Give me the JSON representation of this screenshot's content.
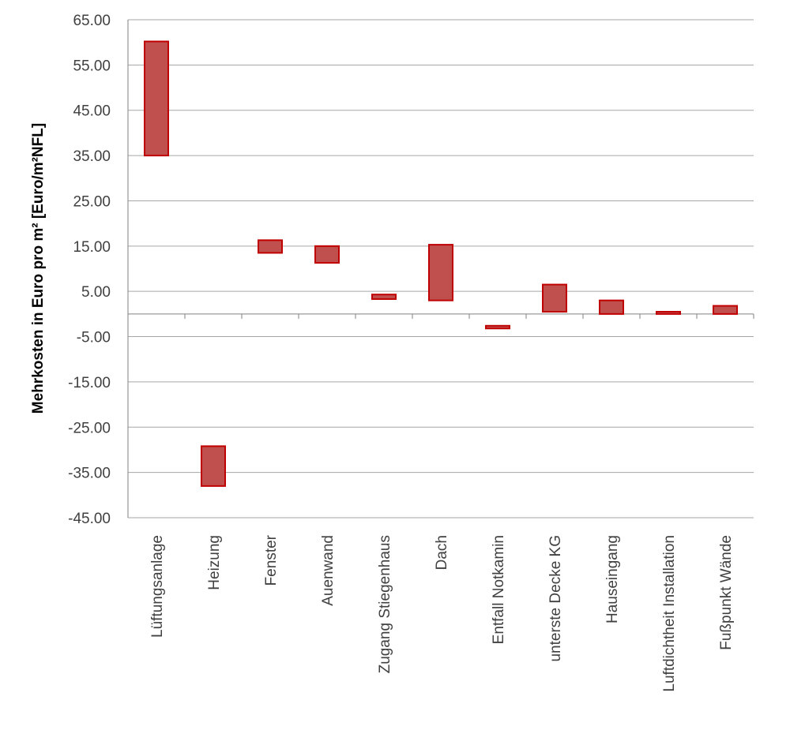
{
  "chart_data": {
    "type": "bar",
    "subtype": "floating-range",
    "title": "",
    "xlabel": "",
    "ylabel": "Mehrkosten in Euro pro m² [Euro/m²NFL]",
    "ylim": [
      -45,
      65
    ],
    "yticks": [
      "65.00",
      "55.00",
      "45.00",
      "35.00",
      "25.00",
      "15.00",
      "5.00",
      "-5.00",
      "-15.00",
      "-25.00",
      "-35.00",
      "-45.00"
    ],
    "ytick_values": [
      65,
      55,
      45,
      35,
      25,
      15,
      5,
      -5,
      -15,
      -25,
      -35,
      -45
    ],
    "grid": true,
    "legend": "none",
    "colors": {
      "fill": "#c0504d",
      "stroke": "#c00000",
      "grid": "#a6a6a6",
      "axis": "#808080"
    },
    "categories": [
      "Lüftungsanlage",
      "Heizung",
      "Fenster",
      "Auenwand",
      "Zugang Stiegenhaus",
      "Dach",
      "Entfall Notkamin",
      "unterste Decke KG",
      "Hauseingang",
      "Luftdichtheit Installation",
      "Fußpunkt Wände"
    ],
    "series": [
      {
        "low": [
          35,
          -38,
          13.5,
          11.3,
          3.3,
          3.0,
          -3.2,
          0.5,
          0,
          0,
          0
        ],
        "high": [
          60.2,
          -29.2,
          16.3,
          15.0,
          4.3,
          15.3,
          -2.6,
          6.5,
          3.0,
          0.5,
          1.8
        ]
      }
    ]
  }
}
